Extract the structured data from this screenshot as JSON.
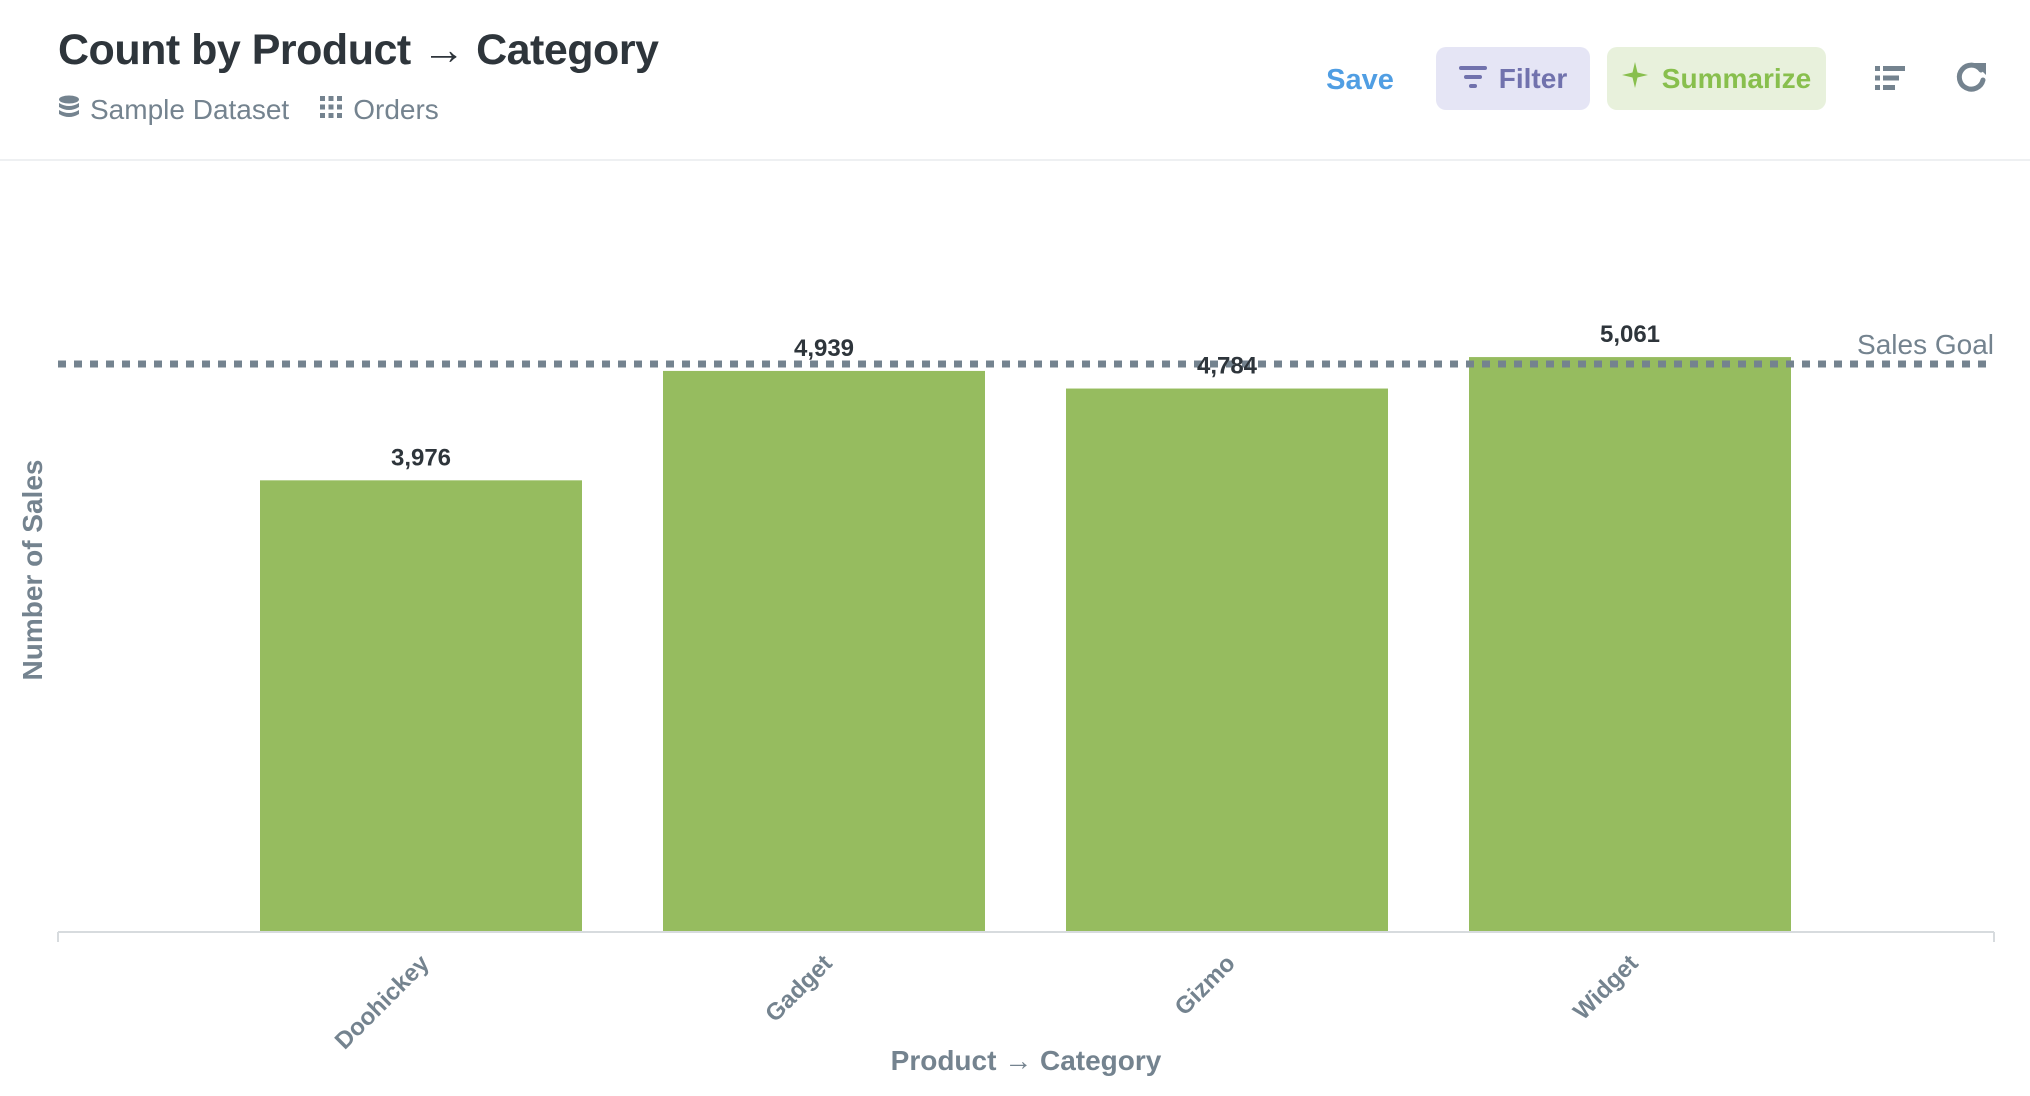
{
  "header": {
    "title": "Count by Product → Category",
    "breadcrumbs": [
      {
        "label": "Sample Dataset",
        "icon": "database-icon"
      },
      {
        "label": "Orders",
        "icon": "table-grid-icon"
      }
    ],
    "save_label": "Save",
    "filter_label": "Filter",
    "summarize_label": "Summarize",
    "icons": {
      "filter": "filter-icon",
      "summarize": "sparkle-icon",
      "list": "list-icon",
      "refresh": "refresh-icon"
    }
  },
  "colors": {
    "bar": "#96bc5f",
    "save": "#509ee3",
    "filter_bg": "#e5e5f5",
    "filter_text": "#7172ad",
    "summarize_bg": "#e8f1dc",
    "summarize_text": "#88bf4d",
    "goal_line": "#74838f",
    "axis_text": "#74838f"
  },
  "chart_data": {
    "type": "bar",
    "categories": [
      "Doohickey",
      "Gadget",
      "Gizmo",
      "Widget"
    ],
    "values": [
      3976,
      4939,
      4784,
      5061
    ],
    "value_labels": [
      "3,976",
      "4,939",
      "4,784",
      "5,061"
    ],
    "title": "",
    "xlabel": "Product → Category",
    "ylabel": "Number of Sales",
    "ylim": [
      0,
      6200
    ],
    "goal": {
      "label": "Sales Goal",
      "value": 5000
    },
    "grid": false,
    "legend": "none"
  }
}
